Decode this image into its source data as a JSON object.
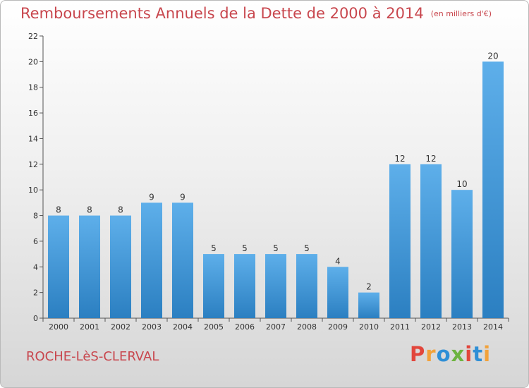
{
  "footer": {
    "commune": "ROCHE-LèS-CLERVAL",
    "logo_text": "Proxiti",
    "logo_colors": [
      "#e2463c",
      "#f2a23a",
      "#2f8fd6",
      "#6db33f",
      "#e2463c",
      "#2f8fd6",
      "#f2a23a"
    ]
  },
  "chart_data": {
    "type": "bar",
    "title": "Remboursements Annuels de la Dette de 2000 à 2014",
    "unit": "(en milliers d'€)",
    "categories": [
      "2000",
      "2001",
      "2002",
      "2003",
      "2004",
      "2005",
      "2006",
      "2007",
      "2008",
      "2009",
      "2010",
      "2011",
      "2012",
      "2013",
      "2014"
    ],
    "values": [
      8,
      8,
      8,
      9,
      9,
      5,
      5,
      5,
      5,
      4,
      2,
      12,
      12,
      10,
      20
    ],
    "ylim": [
      0,
      22
    ],
    "yticks": [
      0,
      2,
      4,
      6,
      8,
      10,
      12,
      14,
      16,
      18,
      20,
      22
    ],
    "grid": false,
    "legend": "none",
    "bar_color_light": "#5eafea",
    "bar_color_dark": "#2b7fc1"
  }
}
